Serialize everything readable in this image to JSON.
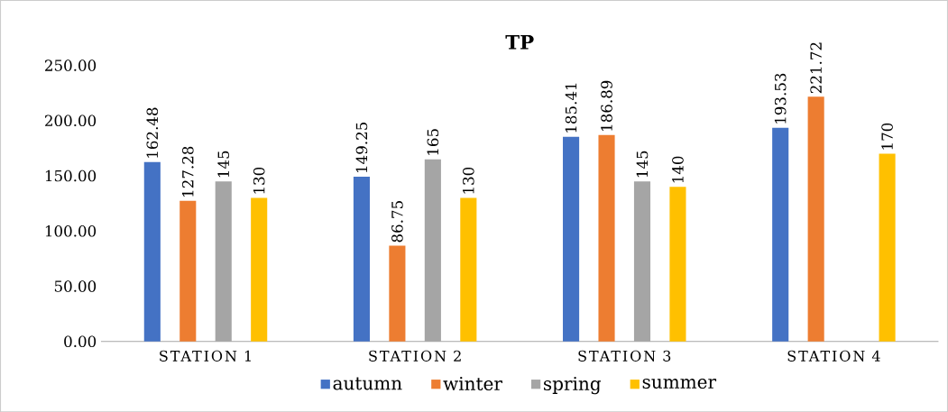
{
  "chart_data": {
    "type": "bar",
    "title": "TP",
    "categories": [
      "STATION 1",
      "STATION 2",
      "STATION 3",
      "STATION 4"
    ],
    "series": [
      {
        "name": "autumn",
        "color": "#4472c4",
        "values": [
          162.48,
          149.25,
          185.41,
          193.53
        ],
        "value_labels": [
          "162.48",
          "149.25",
          "185.41",
          "193.53"
        ]
      },
      {
        "name": "winter",
        "color": "#ed7d31",
        "values": [
          127.28,
          86.75,
          186.89,
          221.72
        ],
        "value_labels": [
          "127.28",
          "86.75",
          "186.89",
          "221.72"
        ]
      },
      {
        "name": "spring",
        "color": "#a5a5a5",
        "values": [
          145,
          165,
          145,
          null
        ],
        "value_labels": [
          "145",
          "165",
          "145",
          null
        ]
      },
      {
        "name": "summer",
        "color": "#ffc000",
        "values": [
          130,
          130,
          140,
          170
        ],
        "value_labels": [
          "130",
          "130",
          "140",
          "170"
        ]
      }
    ],
    "ylim": [
      0,
      250
    ],
    "yticks": [
      {
        "value": 0,
        "label": "0.00"
      },
      {
        "value": 50,
        "label": "50.00"
      },
      {
        "value": 100,
        "label": "100.00"
      },
      {
        "value": 150,
        "label": "150.00"
      },
      {
        "value": 200,
        "label": "200.00"
      },
      {
        "value": 250,
        "label": "250.00"
      }
    ],
    "legend": "bottom"
  }
}
